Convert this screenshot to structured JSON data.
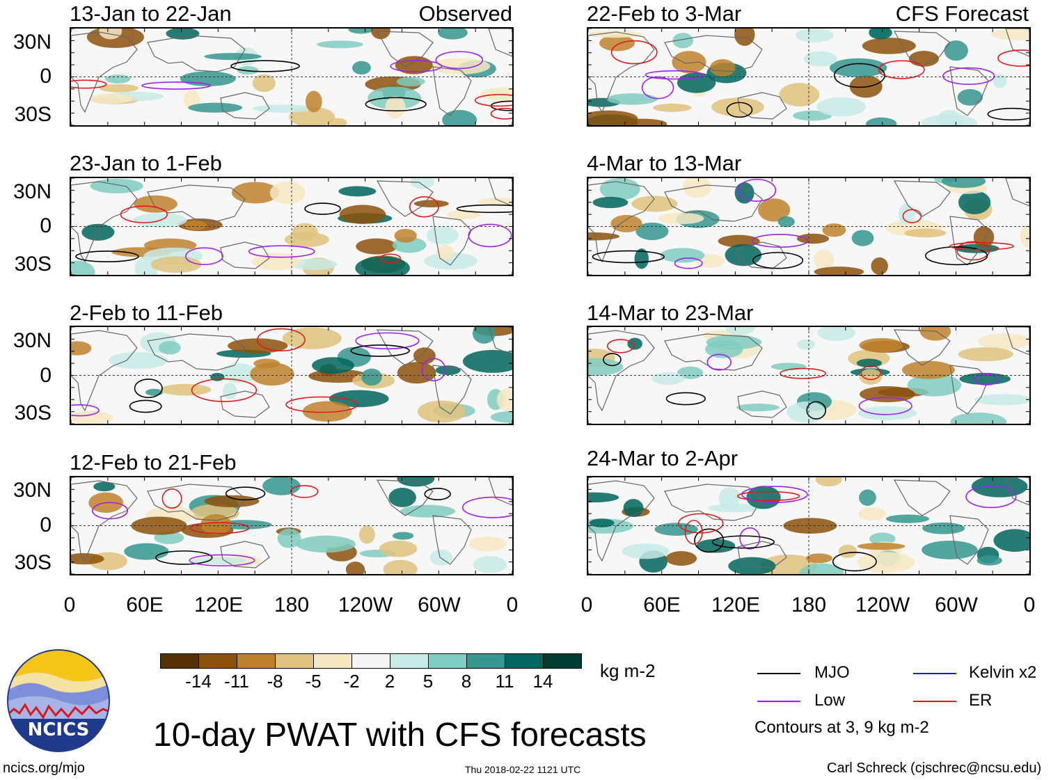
{
  "left_column_label": "Observed",
  "right_column_label": "CFS Forecast",
  "panels_left": [
    {
      "period": "13-Jan to 22-Jan"
    },
    {
      "period": "23-Jan to 1-Feb"
    },
    {
      "period": "2-Feb to 11-Feb"
    },
    {
      "period": "12-Feb to 21-Feb"
    }
  ],
  "panels_right": [
    {
      "period": "22-Feb to 3-Mar"
    },
    {
      "period": "4-Mar to 13-Mar"
    },
    {
      "period": "14-Mar to 23-Mar"
    },
    {
      "period": "24-Mar to 2-Apr"
    }
  ],
  "lat_labels": [
    "30N",
    "0",
    "30S"
  ],
  "lon_labels": [
    "0",
    "60E",
    "120E",
    "180",
    "120W",
    "60W",
    "0"
  ],
  "colorbar": {
    "ticks": [
      "-14",
      "-11",
      "-8",
      "-5",
      "-2",
      "2",
      "5",
      "8",
      "11",
      "14"
    ],
    "colors": [
      "#543005",
      "#8c510a",
      "#bf812d",
      "#dfc27d",
      "#f6e8c3",
      "#f5f5f5",
      "#c7eae5",
      "#80cdc1",
      "#35978f",
      "#01665e",
      "#003c30"
    ],
    "unit": "kg m-2"
  },
  "title": "10-day PWAT with CFS forecasts",
  "legend": {
    "items": [
      {
        "label": "MJO",
        "color": "#000000"
      },
      {
        "label": "Kelvin x2",
        "color": "#1a1adb"
      },
      {
        "label": "Low",
        "color": "#a020f0"
      },
      {
        "label": "ER",
        "color": "#e31a1c"
      }
    ],
    "note": "Contours at 3, 9 kg m-2"
  },
  "logo_text": "NCICS",
  "footer": {
    "url": "ncics.org/mjo",
    "timestamp": "Thu 2018-02-22 1121 UTC",
    "credit": "Carl Schreck (cjschrec@ncsu.edu)"
  }
}
